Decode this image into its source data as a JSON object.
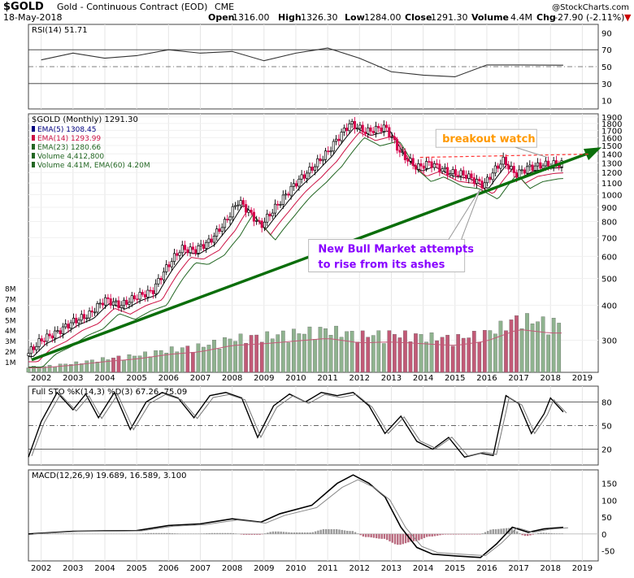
{
  "header": {
    "symbol": "$GOLD",
    "description": "Gold - Continuous Contract (EOD)",
    "exchange": "CME",
    "date": "18-May-2018",
    "open_label": "Open",
    "open": "1316.00",
    "high_label": "High",
    "high": "1326.30",
    "low_label": "Low",
    "low": "1284.00",
    "close_label": "Close",
    "close": "1291.30",
    "volume_label": "Volume",
    "volume": "4.4M",
    "chg_label": "Chg",
    "chg": "-27.90 (-2.11%)",
    "chg_arrow": "▼",
    "watermark": "@StockCharts.com"
  },
  "colors": {
    "bull_candle": "#000000",
    "bear_candle": "#d6004b",
    "ema5": "#000000",
    "ema14": "#cc1144",
    "ema23": "#226622",
    "trendline": "#0a6e0a",
    "breakout_line": "#ff3333",
    "macd_hist": "#9a9a9a",
    "callout_breakout": "#ff9900",
    "callout_bull": "#8800ff",
    "vol_up": "#8fb38f",
    "vol_down": "#c25a77"
  },
  "chart_data": [
    {
      "type": "line",
      "panel": "rsi",
      "legend": "RSI(14) 51.71",
      "levels": [
        70,
        50,
        30
      ],
      "yticks": [
        "90",
        "70",
        "50",
        "30",
        "10"
      ],
      "ylim": [
        0,
        100
      ],
      "x": [
        2002,
        2003,
        2004,
        2005,
        2006,
        2007,
        2008,
        2009,
        2010,
        2011,
        2012,
        2013,
        2014,
        2015,
        2016,
        2017,
        2018.4
      ],
      "values": [
        58,
        66,
        60,
        63,
        70,
        66,
        68,
        57,
        66,
        72,
        60,
        44,
        40,
        38,
        52,
        52,
        51.71
      ]
    },
    {
      "type": "candlestick",
      "panel": "price",
      "title": "$GOLD (Monthly) 1291.30",
      "scale": "log",
      "ylim": [
        230,
        1950
      ],
      "yticks": [
        "1900",
        "1800",
        "1700",
        "1600",
        "1500",
        "1400",
        "1300",
        "1200",
        "1100",
        "1000",
        "900",
        "800",
        "700",
        "600",
        "500",
        "400",
        "300"
      ],
      "xticks": [
        "2002",
        "2003",
        "2004",
        "2005",
        "2006",
        "2007",
        "2008",
        "2009",
        "2010",
        "2011",
        "2012",
        "2013",
        "2014",
        "2015",
        "2016",
        "2017",
        "2018",
        "2019"
      ],
      "x": [
        2001.6,
        2002,
        2002.5,
        2003,
        2003.5,
        2004,
        2004.5,
        2005,
        2005.5,
        2006,
        2006.4,
        2006.8,
        2007.3,
        2007.8,
        2008.2,
        2008.9,
        2009.5,
        2010,
        2010.5,
        2011,
        2011.7,
        2012.2,
        2012.8,
        2013.3,
        2013.8,
        2014.2,
        2014.8,
        2015.3,
        2015.9,
        2016.5,
        2016.9,
        2017.3,
        2017.8,
        2018.3
      ],
      "close": [
        270,
        300,
        320,
        350,
        370,
        420,
        400,
        430,
        450,
        560,
        640,
        630,
        680,
        800,
        950,
        770,
        940,
        1100,
        1240,
        1420,
        1800,
        1680,
        1750,
        1400,
        1250,
        1300,
        1200,
        1180,
        1080,
        1330,
        1180,
        1250,
        1280,
        1291.3
      ],
      "series": [
        {
          "name": "EMA(5) 1308.45",
          "color": "#000080"
        },
        {
          "name": "EMA(14) 1293.99",
          "color": "#cc1144"
        },
        {
          "name": "EMA(23) 1280.66",
          "color": "#226622"
        },
        {
          "name": "Volume 4,412,800",
          "color": "#226622"
        },
        {
          "name": "Volume 4.41M, EMA(60) 4.20M",
          "color": "#226622"
        }
      ],
      "ema_lag": [
        0.97,
        0.93,
        0.89
      ],
      "trendline": {
        "from": [
          2001.7,
          255
        ],
        "to": [
          2019.5,
          1440
        ]
      },
      "breakout_level": 1360,
      "breakout_from_x": 2013.9,
      "annotations": [
        {
          "text": "breakout watch",
          "x": 2017.4,
          "y": 1560
        },
        {
          "text": "New Bull Market attempts",
          "x": 2010.7,
          "y": 620
        },
        {
          "text": "to rise from its ashes",
          "x": 2010.7,
          "y": 560
        }
      ]
    },
    {
      "type": "bar",
      "panel": "volume",
      "yticks": [
        "8M",
        "7M",
        "6M",
        "5M",
        "4M",
        "3M",
        "2M",
        "1M"
      ],
      "ylim": [
        0,
        8.5
      ],
      "x": [
        2002,
        2003,
        2004,
        2005,
        2006,
        2007,
        2008,
        2009,
        2010,
        2011,
        2012,
        2013,
        2014,
        2015,
        2016,
        2017,
        2018
      ],
      "values": [
        0.5,
        0.8,
        1.2,
        1.5,
        2.0,
        2.3,
        3.0,
        3.2,
        3.5,
        3.8,
        3.3,
        3.4,
        3.2,
        3.0,
        3.5,
        4.8,
        4.4
      ]
    },
    {
      "type": "line",
      "panel": "stochastic",
      "legend": "Full STO %K(14,3) %D(3) 67.26, 75.09",
      "levels": [
        80,
        50,
        20
      ],
      "yticks": [
        "80",
        "50",
        "20"
      ],
      "ylim": [
        0,
        100
      ],
      "x": [
        2001.6,
        2002,
        2002.5,
        2003,
        2003.4,
        2003.8,
        2004.3,
        2004.8,
        2005.3,
        2005.8,
        2006.3,
        2006.8,
        2007.3,
        2007.8,
        2008.3,
        2008.8,
        2009.3,
        2009.8,
        2010.3,
        2010.8,
        2011.3,
        2011.8,
        2012.3,
        2012.8,
        2013.3,
        2013.8,
        2014.3,
        2014.8,
        2015.3,
        2015.8,
        2016.2,
        2016.6,
        2017.0,
        2017.4,
        2017.8,
        2018.0,
        2018.4
      ],
      "values": [
        10,
        55,
        92,
        70,
        90,
        60,
        92,
        45,
        80,
        92,
        85,
        60,
        88,
        92,
        85,
        35,
        75,
        90,
        80,
        92,
        88,
        92,
        75,
        40,
        62,
        30,
        20,
        35,
        10,
        15,
        12,
        88,
        78,
        40,
        65,
        85,
        67.26
      ]
    },
    {
      "type": "line",
      "panel": "macd",
      "legend": "MACD(12,26,9) 19.689, 16.589, 3.100",
      "yticks": [
        "150",
        "100",
        "50",
        "0",
        "-50"
      ],
      "ylim": [
        -80,
        190
      ],
      "x": [
        2001.6,
        2003,
        2005,
        2006,
        2007,
        2008,
        2008.9,
        2009.5,
        2010.5,
        2011.3,
        2011.8,
        2012.3,
        2012.8,
        2013.3,
        2013.8,
        2014.3,
        2015,
        2015.8,
        2016.3,
        2016.8,
        2017.3,
        2017.8,
        2018.4
      ],
      "values": [
        0,
        8,
        10,
        25,
        30,
        45,
        35,
        60,
        85,
        150,
        175,
        150,
        110,
        20,
        -40,
        -60,
        -65,
        -70,
        -30,
        20,
        5,
        15,
        19.689
      ]
    }
  ]
}
